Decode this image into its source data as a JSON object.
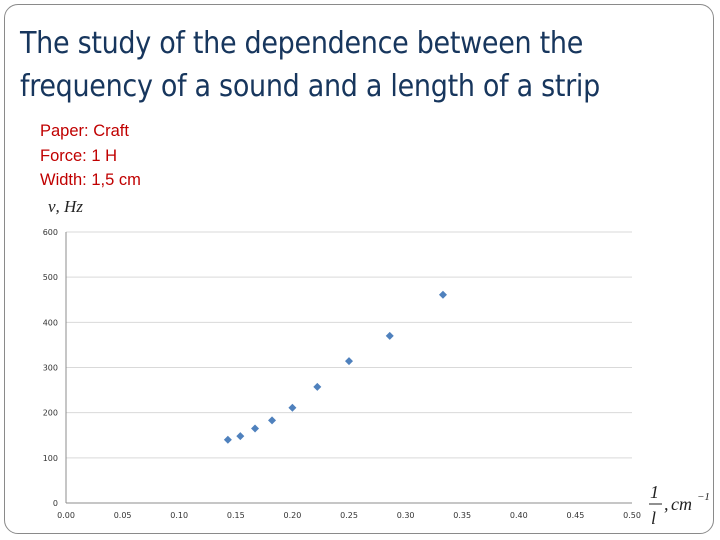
{
  "slide": {
    "title": "The study of the dependence between the frequency of a sound and a length of a strip",
    "params": [
      "Paper: Craft",
      "Force: 1 H",
      "Width: 1,5 cm"
    ]
  },
  "colors": {
    "title": "#17365d",
    "params": "#c00000",
    "marker": "#4f81bd",
    "grid": "#d9d9d9"
  },
  "chart_data": {
    "type": "scatter",
    "ylabel": "ν, Hz",
    "xlabel": "1/l, cm⁻¹",
    "xlim": [
      0,
      0.5
    ],
    "ylim": [
      0,
      600
    ],
    "x_ticks": [
      "0.00",
      "0.05",
      "0.10",
      "0.15",
      "0.20",
      "0.25",
      "0.30",
      "0.35",
      "0.40",
      "0.45",
      "0.50"
    ],
    "y_ticks": [
      "0",
      "100",
      "200",
      "300",
      "400",
      "500",
      "600"
    ],
    "grid": "horizontal",
    "series": [
      {
        "points": [
          {
            "x": 0.143,
            "y": 140
          },
          {
            "x": 0.154,
            "y": 148
          },
          {
            "x": 0.167,
            "y": 165
          },
          {
            "x": 0.182,
            "y": 183
          },
          {
            "x": 0.2,
            "y": 211
          },
          {
            "x": 0.222,
            "y": 257
          },
          {
            "x": 0.25,
            "y": 314
          },
          {
            "x": 0.286,
            "y": 370
          },
          {
            "x": 0.333,
            "y": 461
          }
        ]
      }
    ]
  }
}
